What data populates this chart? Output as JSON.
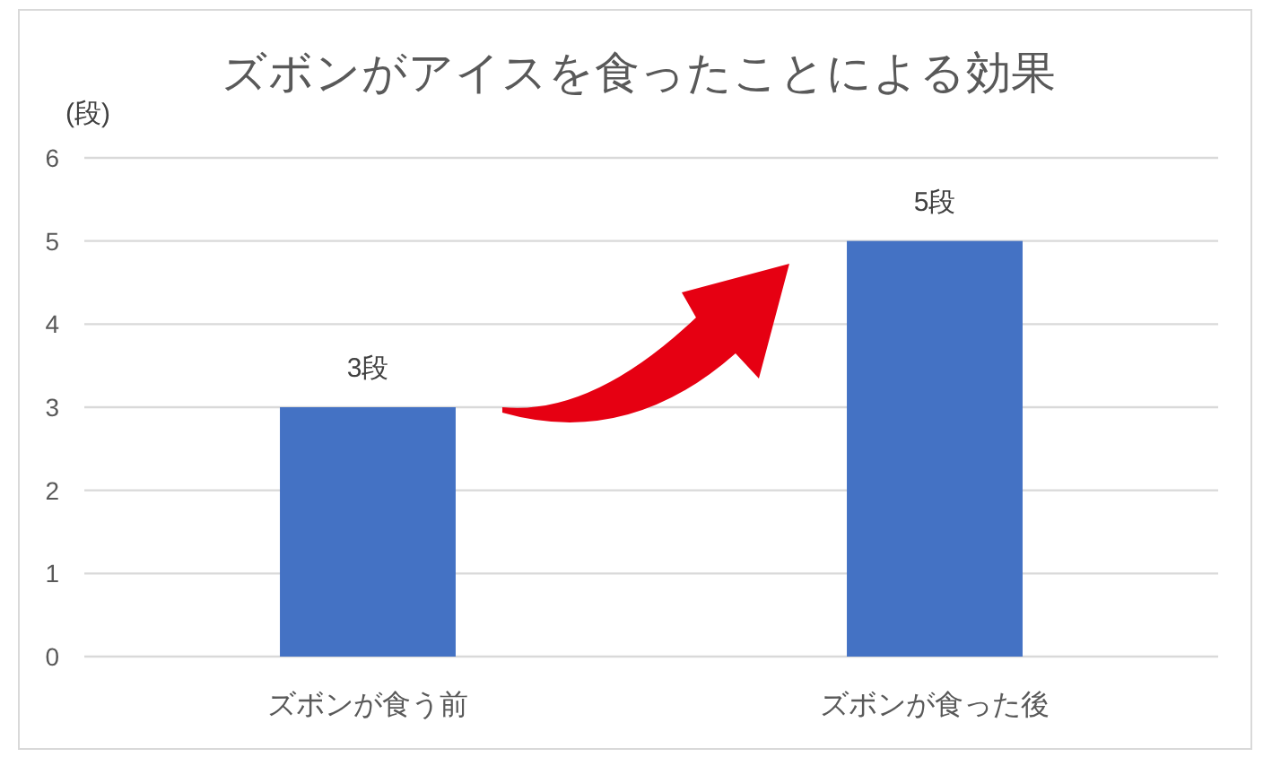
{
  "chart_data": {
    "type": "bar",
    "title": "ズボンがアイスを食ったことによる効果",
    "ylabel": "(段)",
    "categories": [
      "ズボンが食う前",
      "ズボンが食った後"
    ],
    "values": [
      3,
      5
    ],
    "value_labels": [
      "3段",
      "5段"
    ],
    "color": "#4472c4",
    "ylim": [
      0,
      6
    ],
    "yticks": [
      0,
      1,
      2,
      3,
      4,
      5,
      6
    ],
    "grid": "y"
  }
}
